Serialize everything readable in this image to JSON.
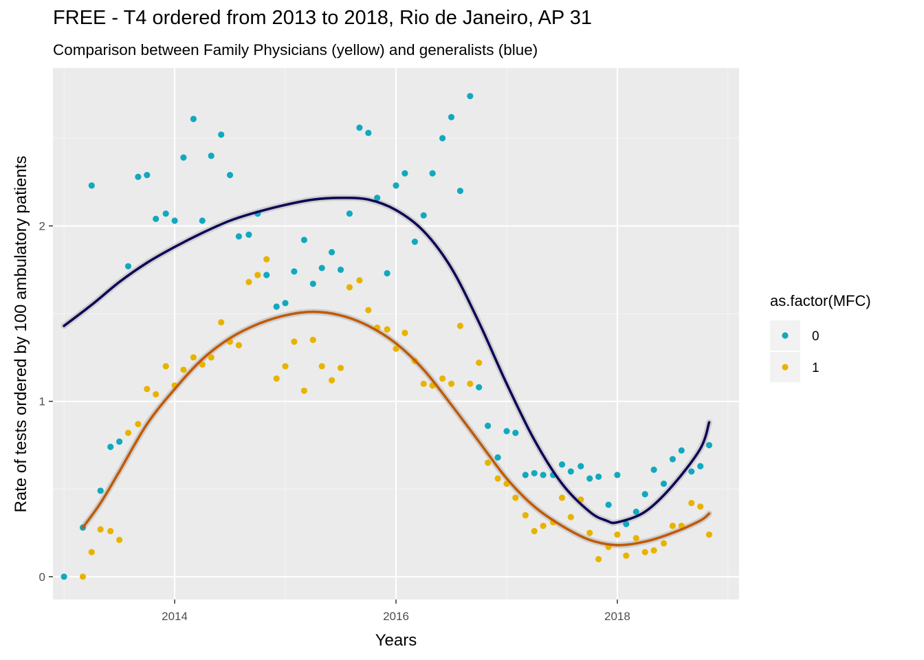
{
  "chart_data": {
    "type": "scatter",
    "title": "FREE - T4 ordered from 2013 to 2018, Rio de Janeiro, AP 31",
    "subtitle": "Comparison between Family Physicians (yellow) and generalists (blue)",
    "xlabel": "Years",
    "ylabel": "Rate of tests ordered by 100 ambulatory patients",
    "xlim": [
      2012.9,
      2019.1
    ],
    "ylim": [
      -0.13,
      2.9
    ],
    "x_ticks": [
      2014,
      2016,
      2018
    ],
    "x_tick_labels": [
      "2014",
      "2016",
      "2018"
    ],
    "y_ticks": [
      0,
      1,
      2
    ],
    "y_tick_labels": [
      "0",
      "1",
      "2"
    ],
    "grid": true,
    "legend": {
      "title": "as.factor(MFC)",
      "position": "right",
      "entries": [
        {
          "label": "0",
          "color": "#11A9BF"
        },
        {
          "label": "1",
          "color": "#E8B300"
        }
      ]
    },
    "series": [
      {
        "color": "#11A9BF",
        "smooth_color": "#0E0757",
        "points": [
          [
            2013.0,
            0.0
          ],
          [
            2013.17,
            0.28
          ],
          [
            2013.25,
            2.23
          ],
          [
            2013.33,
            0.49
          ],
          [
            2013.42,
            0.74
          ],
          [
            2013.5,
            0.77
          ],
          [
            2013.58,
            1.77
          ],
          [
            2013.67,
            2.28
          ],
          [
            2013.75,
            2.29
          ],
          [
            2013.83,
            2.04
          ],
          [
            2013.92,
            2.07
          ],
          [
            2014.0,
            2.03
          ],
          [
            2014.08,
            2.39
          ],
          [
            2014.17,
            2.61
          ],
          [
            2014.25,
            2.03
          ],
          [
            2014.33,
            2.4
          ],
          [
            2014.42,
            2.52
          ],
          [
            2014.5,
            2.29
          ],
          [
            2014.58,
            1.94
          ],
          [
            2014.67,
            1.95
          ],
          [
            2014.75,
            2.07
          ],
          [
            2014.83,
            1.72
          ],
          [
            2014.92,
            1.54
          ],
          [
            2015.0,
            1.56
          ],
          [
            2015.08,
            1.74
          ],
          [
            2015.17,
            1.92
          ],
          [
            2015.25,
            1.67
          ],
          [
            2015.33,
            1.76
          ],
          [
            2015.42,
            1.85
          ],
          [
            2015.5,
            1.75
          ],
          [
            2015.58,
            2.07
          ],
          [
            2015.67,
            2.56
          ],
          [
            2015.75,
            2.53
          ],
          [
            2015.83,
            2.16
          ],
          [
            2015.92,
            1.73
          ],
          [
            2016.0,
            2.23
          ],
          [
            2016.08,
            2.3
          ],
          [
            2016.17,
            1.91
          ],
          [
            2016.25,
            2.06
          ],
          [
            2016.33,
            2.3
          ],
          [
            2016.42,
            2.5
          ],
          [
            2016.5,
            2.62
          ],
          [
            2016.58,
            2.2
          ],
          [
            2016.67,
            2.74
          ],
          [
            2016.75,
            1.08
          ],
          [
            2016.83,
            0.86
          ],
          [
            2016.92,
            0.68
          ],
          [
            2017.0,
            0.83
          ],
          [
            2017.08,
            0.82
          ],
          [
            2017.17,
            0.58
          ],
          [
            2017.25,
            0.59
          ],
          [
            2017.33,
            0.58
          ],
          [
            2017.42,
            0.58
          ],
          [
            2017.5,
            0.64
          ],
          [
            2017.58,
            0.6
          ],
          [
            2017.67,
            0.63
          ],
          [
            2017.75,
            0.56
          ],
          [
            2017.83,
            0.57
          ],
          [
            2017.92,
            0.41
          ],
          [
            2018.0,
            0.58
          ],
          [
            2018.08,
            0.3
          ],
          [
            2018.17,
            0.37
          ],
          [
            2018.25,
            0.47
          ],
          [
            2018.33,
            0.61
          ],
          [
            2018.42,
            0.53
          ],
          [
            2018.5,
            0.67
          ],
          [
            2018.58,
            0.72
          ],
          [
            2018.67,
            0.6
          ],
          [
            2018.75,
            0.63
          ],
          [
            2018.83,
            0.75
          ]
        ],
        "smooth": [
          [
            2013.0,
            1.43
          ],
          [
            2013.25,
            1.55
          ],
          [
            2013.5,
            1.68
          ],
          [
            2013.75,
            1.79
          ],
          [
            2014.0,
            1.88
          ],
          [
            2014.25,
            1.96
          ],
          [
            2014.5,
            2.03
          ],
          [
            2014.75,
            2.08
          ],
          [
            2015.0,
            2.12
          ],
          [
            2015.25,
            2.15
          ],
          [
            2015.5,
            2.16
          ],
          [
            2015.75,
            2.15
          ],
          [
            2016.0,
            2.09
          ],
          [
            2016.25,
            1.97
          ],
          [
            2016.5,
            1.76
          ],
          [
            2016.75,
            1.45
          ],
          [
            2017.0,
            1.1
          ],
          [
            2017.25,
            0.78
          ],
          [
            2017.5,
            0.53
          ],
          [
            2017.75,
            0.37
          ],
          [
            2017.9,
            0.32
          ],
          [
            2018.0,
            0.31
          ],
          [
            2018.25,
            0.37
          ],
          [
            2018.5,
            0.52
          ],
          [
            2018.75,
            0.73
          ],
          [
            2018.83,
            0.88
          ]
        ]
      },
      {
        "color": "#E8B300",
        "smooth_color": "#C15A07",
        "points": [
          [
            2013.17,
            0.0
          ],
          [
            2013.25,
            0.14
          ],
          [
            2013.33,
            0.27
          ],
          [
            2013.42,
            0.26
          ],
          [
            2013.5,
            0.21
          ],
          [
            2013.58,
            0.82
          ],
          [
            2013.67,
            0.87
          ],
          [
            2013.75,
            1.07
          ],
          [
            2013.83,
            1.04
          ],
          [
            2013.92,
            1.2
          ],
          [
            2014.0,
            1.09
          ],
          [
            2014.08,
            1.18
          ],
          [
            2014.17,
            1.25
          ],
          [
            2014.25,
            1.21
          ],
          [
            2014.33,
            1.25
          ],
          [
            2014.42,
            1.45
          ],
          [
            2014.5,
            1.34
          ],
          [
            2014.58,
            1.32
          ],
          [
            2014.67,
            1.68
          ],
          [
            2014.75,
            1.72
          ],
          [
            2014.83,
            1.81
          ],
          [
            2014.92,
            1.13
          ],
          [
            2015.0,
            1.2
          ],
          [
            2015.08,
            1.34
          ],
          [
            2015.17,
            1.06
          ],
          [
            2015.25,
            1.35
          ],
          [
            2015.33,
            1.2
          ],
          [
            2015.42,
            1.12
          ],
          [
            2015.5,
            1.19
          ],
          [
            2015.58,
            1.65
          ],
          [
            2015.67,
            1.69
          ],
          [
            2015.75,
            1.52
          ],
          [
            2015.83,
            1.42
          ],
          [
            2015.92,
            1.41
          ],
          [
            2016.0,
            1.3
          ],
          [
            2016.08,
            1.39
          ],
          [
            2016.17,
            1.23
          ],
          [
            2016.25,
            1.1
          ],
          [
            2016.33,
            1.09
          ],
          [
            2016.42,
            1.13
          ],
          [
            2016.5,
            1.1
          ],
          [
            2016.58,
            1.43
          ],
          [
            2016.67,
            1.1
          ],
          [
            2016.75,
            1.22
          ],
          [
            2016.83,
            0.65
          ],
          [
            2016.92,
            0.56
          ],
          [
            2017.0,
            0.53
          ],
          [
            2017.08,
            0.45
          ],
          [
            2017.17,
            0.35
          ],
          [
            2017.25,
            0.26
          ],
          [
            2017.33,
            0.29
          ],
          [
            2017.42,
            0.31
          ],
          [
            2017.5,
            0.45
          ],
          [
            2017.58,
            0.34
          ],
          [
            2017.67,
            0.44
          ],
          [
            2017.75,
            0.25
          ],
          [
            2017.83,
            0.1
          ],
          [
            2017.92,
            0.17
          ],
          [
            2018.0,
            0.24
          ],
          [
            2018.08,
            0.12
          ],
          [
            2018.17,
            0.22
          ],
          [
            2018.25,
            0.14
          ],
          [
            2018.33,
            0.15
          ],
          [
            2018.42,
            0.19
          ],
          [
            2018.5,
            0.29
          ],
          [
            2018.58,
            0.29
          ],
          [
            2018.67,
            0.42
          ],
          [
            2018.75,
            0.4
          ],
          [
            2018.83,
            0.24
          ]
        ],
        "smooth": [
          [
            2013.17,
            0.28
          ],
          [
            2013.33,
            0.42
          ],
          [
            2013.5,
            0.6
          ],
          [
            2013.75,
            0.87
          ],
          [
            2014.0,
            1.07
          ],
          [
            2014.25,
            1.24
          ],
          [
            2014.5,
            1.36
          ],
          [
            2014.75,
            1.44
          ],
          [
            2015.0,
            1.49
          ],
          [
            2015.25,
            1.51
          ],
          [
            2015.5,
            1.49
          ],
          [
            2015.75,
            1.43
          ],
          [
            2016.0,
            1.33
          ],
          [
            2016.25,
            1.18
          ],
          [
            2016.5,
            0.98
          ],
          [
            2016.75,
            0.77
          ],
          [
            2017.0,
            0.56
          ],
          [
            2017.25,
            0.4
          ],
          [
            2017.5,
            0.29
          ],
          [
            2017.75,
            0.21
          ],
          [
            2018.0,
            0.18
          ],
          [
            2018.25,
            0.2
          ],
          [
            2018.5,
            0.25
          ],
          [
            2018.75,
            0.32
          ],
          [
            2018.83,
            0.36
          ]
        ]
      }
    ]
  }
}
